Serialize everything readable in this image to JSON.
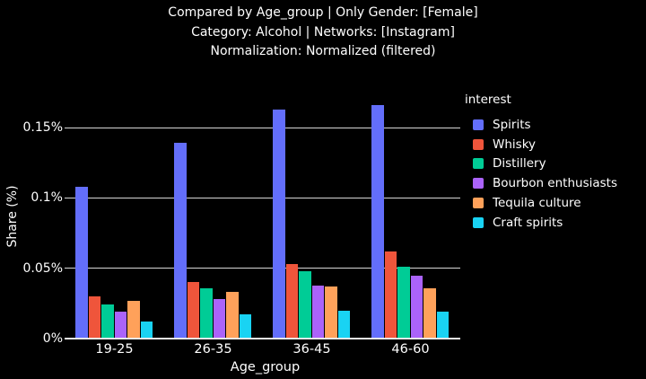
{
  "header": {
    "line1": "Compared by Age_group | Only Gender: [Female]",
    "line2": "Category: Alcohol | Networks: [Instagram]",
    "line3": "Normalization: Normalized (filtered)"
  },
  "chart_data": {
    "type": "bar",
    "title": "Compared by Age_group | Only Gender: [Female] Category: Alcohol | Networks: [Instagram] Normalization: Normalized (filtered)",
    "xlabel": "Age_group",
    "ylabel": "Share (%)",
    "categories": [
      "19-25",
      "26-35",
      "36-45",
      "46-60"
    ],
    "series": [
      {
        "name": "Spirits",
        "color": "#636EFA",
        "values": [
          0.108,
          0.139,
          0.163,
          0.166
        ]
      },
      {
        "name": "Whisky",
        "color": "#EF553B",
        "values": [
          0.03,
          0.04,
          0.053,
          0.062
        ]
      },
      {
        "name": "Distillery",
        "color": "#00CC96",
        "values": [
          0.024,
          0.036,
          0.048,
          0.051
        ]
      },
      {
        "name": "Bourbon enthusiasts",
        "color": "#AB63FA",
        "values": [
          0.019,
          0.028,
          0.038,
          0.045
        ]
      },
      {
        "name": "Tequila culture",
        "color": "#FFA15A",
        "values": [
          0.027,
          0.033,
          0.037,
          0.036
        ]
      },
      {
        "name": "Craft spirits",
        "color": "#19D3F3",
        "values": [
          0.012,
          0.017,
          0.02,
          0.019
        ]
      }
    ],
    "yticks": [
      {
        "value": 0,
        "label": "0%"
      },
      {
        "value": 0.05,
        "label": "0.05%"
      },
      {
        "value": 0.1,
        "label": "0.1%"
      },
      {
        "value": 0.15,
        "label": "0.15%"
      }
    ],
    "ylim": [
      0,
      0.1737
    ],
    "grid": true,
    "legend_title": "interest",
    "legend_position": "right",
    "background_color": "#000000",
    "text_color": "#ffffff",
    "gridline_color": "#d6d6d6"
  }
}
